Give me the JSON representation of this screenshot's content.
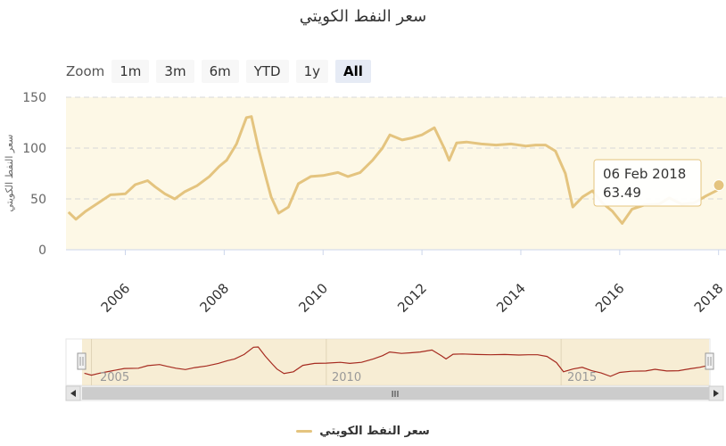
{
  "title": "سعر النفط الكويتي",
  "zoom": {
    "label": "Zoom",
    "buttons": [
      {
        "label": "1m",
        "active": false
      },
      {
        "label": "3m",
        "active": false
      },
      {
        "label": "6m",
        "active": false
      },
      {
        "label": "YTD",
        "active": false
      },
      {
        "label": "1y",
        "active": false
      },
      {
        "label": "All",
        "active": true
      }
    ]
  },
  "tooltip": {
    "date": "06 Feb 2018",
    "value": "63.49"
  },
  "legend": {
    "label": "سعر النفط الكويتي"
  },
  "navigator": {
    "tick_labels": [
      "2005",
      "2010",
      "2015"
    ],
    "scrollbar_grip": "III"
  },
  "colors": {
    "series": "#e4c47f",
    "navigator_line": "#a62b20",
    "plot_band": "#fdf8e6"
  },
  "chart_data": {
    "type": "line",
    "title": "سعر النفط الكويتي",
    "ylabel": "سعر النفط الكويتي",
    "xlabel": "",
    "ylim": [
      0,
      150
    ],
    "yticks": [
      0,
      50,
      100,
      150
    ],
    "xlim": [
      2004.8,
      2018.15
    ],
    "xticks": [
      "2006",
      "2008",
      "2010",
      "2012",
      "2014",
      "2016",
      "2018"
    ],
    "grid": true,
    "legend": "bottom",
    "series": [
      {
        "name": "سعر النفط الكويتي",
        "x": [
          2004.85,
          2005.0,
          2005.2,
          2005.45,
          2005.7,
          2006.0,
          2006.2,
          2006.45,
          2006.6,
          2006.8,
          2007.0,
          2007.2,
          2007.45,
          2007.7,
          2007.9,
          2008.05,
          2008.25,
          2008.45,
          2008.55,
          2008.7,
          2008.85,
          2008.95,
          2009.1,
          2009.3,
          2009.5,
          2009.75,
          2010.0,
          2010.3,
          2010.5,
          2010.75,
          2011.0,
          2011.2,
          2011.35,
          2011.6,
          2011.8,
          2012.0,
          2012.25,
          2012.45,
          2012.55,
          2012.7,
          2012.9,
          2013.2,
          2013.5,
          2013.8,
          2014.1,
          2014.3,
          2014.5,
          2014.7,
          2014.9,
          2015.05,
          2015.25,
          2015.45,
          2015.65,
          2015.85,
          2016.05,
          2016.25,
          2016.5,
          2016.8,
          2017.0,
          2017.25,
          2017.5,
          2017.75,
          2017.95,
          2018.1
        ],
        "y": [
          37,
          30,
          38,
          46,
          54,
          55,
          64,
          68,
          62,
          55,
          50,
          57,
          63,
          72,
          82,
          88,
          104,
          130,
          131,
          98,
          70,
          52,
          36,
          42,
          65,
          72,
          73,
          76,
          72,
          76,
          88,
          100,
          113,
          108,
          110,
          113,
          120,
          100,
          88,
          105,
          106,
          104,
          103,
          104,
          102,
          103,
          103,
          97,
          75,
          42,
          52,
          58,
          46,
          38,
          26,
          40,
          44,
          45,
          51,
          45,
          46,
          53,
          58,
          63.49
        ]
      }
    ]
  }
}
